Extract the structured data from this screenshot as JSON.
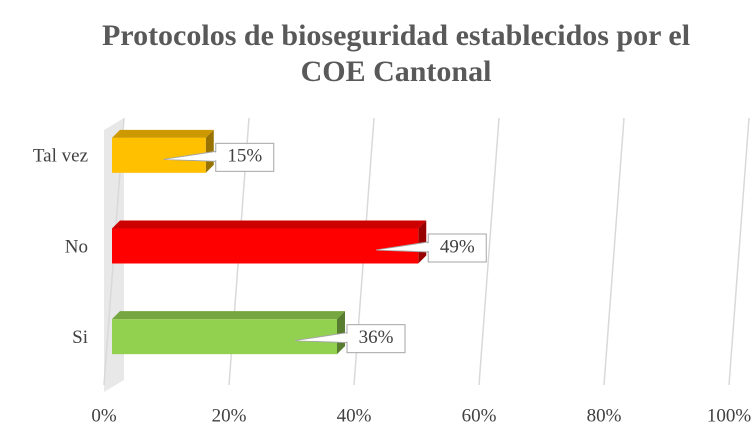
{
  "chart_data": {
    "type": "bar3d_horizontal",
    "title": "Protocolos de bioseguridad establecidos por el COE Cantonal",
    "categories": [
      "Si",
      "No",
      "Tal vez"
    ],
    "values": [
      36,
      49,
      15
    ],
    "value_labels": [
      "36%",
      "49%",
      "15%"
    ],
    "colors": [
      "#92d050",
      "#ff0000",
      "#ffc000"
    ],
    "xlim": [
      0,
      100
    ],
    "xticks": [
      {
        "value": 0,
        "label": "0%"
      },
      {
        "value": 20,
        "label": "20%"
      },
      {
        "value": 40,
        "label": "40%"
      },
      {
        "value": 60,
        "label": "60%"
      },
      {
        "value": 80,
        "label": "80%"
      },
      {
        "value": 100,
        "label": "100%"
      }
    ],
    "grid": true
  }
}
